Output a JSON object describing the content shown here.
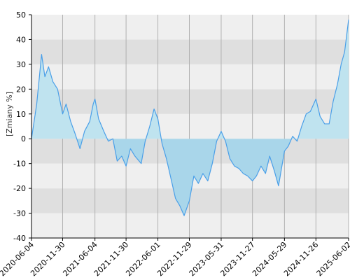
{
  "chart_data": {
    "type": "area",
    "title": "",
    "xlabel": "",
    "ylabel": "[Zmiany %]",
    "ylim": [
      -40,
      50
    ],
    "yticks": [
      -40,
      -30,
      -20,
      -10,
      0,
      10,
      20,
      30,
      40,
      50
    ],
    "xlim": [
      "2020-06-04",
      "2025-06-02"
    ],
    "xticks": [
      "2020-06-04",
      "2020-11-30",
      "2021-06-04",
      "2021-11-30",
      "2022-06-01",
      "2022-11-29",
      "2023-05-31",
      "2023-11-27",
      "2024-05-29",
      "2024-11-26",
      "2025-06-02"
    ],
    "grid": true,
    "legend": "none",
    "colors": {
      "line": "#4a9fe8",
      "fill_positive": "#bfe3ef",
      "fill_negative": "#a9d6ea",
      "band_light": "#efefef",
      "band_dark": "#dfdfdf",
      "axis": "#000000",
      "vgrid": "#b0b0b0"
    },
    "series": [
      {
        "x": [
          "2020-06-04",
          "2020-07-04",
          "2020-08-01",
          "2020-08-20",
          "2020-09-10",
          "2020-10-05",
          "2020-11-01",
          "2020-11-30",
          "2020-12-20",
          "2021-01-15",
          "2021-02-10",
          "2021-03-10",
          "2021-04-05",
          "2021-05-05",
          "2021-05-25",
          "2021-06-04",
          "2021-06-25",
          "2021-07-25",
          "2021-08-20",
          "2021-09-15",
          "2021-10-10",
          "2021-11-05",
          "2021-11-30",
          "2021-12-25",
          "2022-01-20",
          "2022-02-25",
          "2022-03-20",
          "2022-04-15",
          "2022-05-10",
          "2022-06-01",
          "2022-06-25",
          "2022-07-20",
          "2022-08-15",
          "2022-09-10",
          "2022-10-05",
          "2022-10-30",
          "2022-11-29",
          "2022-12-25",
          "2023-01-20",
          "2023-02-15",
          "2023-03-15",
          "2023-04-10",
          "2023-05-05",
          "2023-05-31",
          "2023-06-25",
          "2023-07-20",
          "2023-08-15",
          "2023-09-10",
          "2023-10-05",
          "2023-10-30",
          "2023-11-27",
          "2023-12-20",
          "2024-01-15",
          "2024-02-10",
          "2024-03-05",
          "2024-04-01",
          "2024-04-25",
          "2024-05-29",
          "2024-06-20",
          "2024-07-15",
          "2024-08-10",
          "2024-09-05",
          "2024-10-01",
          "2024-10-25",
          "2024-11-26",
          "2024-12-20",
          "2025-01-15",
          "2025-02-10",
          "2025-03-05",
          "2025-03-30",
          "2025-04-20",
          "2025-05-10",
          "2025-06-02"
        ],
        "values": [
          0,
          14,
          34,
          25,
          29,
          23,
          20,
          10,
          14,
          7,
          2,
          -4,
          3,
          7,
          14,
          16,
          8,
          3,
          -1,
          0,
          -9,
          -7,
          -11,
          -4,
          -7,
          -10,
          -1,
          5,
          12,
          8,
          -2,
          -8,
          -16,
          -24,
          -27,
          -31,
          -25,
          -15,
          -18,
          -14,
          -17,
          -10,
          -1,
          3,
          -1,
          -8,
          -11,
          -12,
          -14,
          -15,
          -17,
          -15,
          -11,
          -14,
          -7,
          -13,
          -19,
          -5,
          -3,
          1,
          -1,
          5,
          10,
          11,
          16,
          9,
          6,
          6,
          15,
          22,
          30,
          35,
          48
        ]
      }
    ]
  }
}
